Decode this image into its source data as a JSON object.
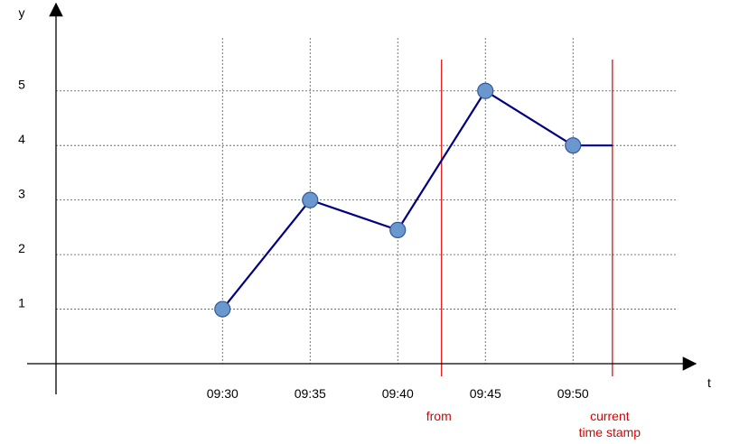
{
  "chart_data": {
    "type": "line",
    "xlabel": "t",
    "ylabel": "y",
    "x": [
      "09:30",
      "09:35",
      "09:40",
      "09:45",
      "09:50"
    ],
    "series": [
      {
        "values": [
          1.0,
          3.0,
          2.45,
          5.0,
          4.0
        ]
      }
    ],
    "y_ticks": [
      "1",
      "2",
      "3",
      "4",
      "5"
    ],
    "y_tick_values": [
      1,
      2,
      3,
      4,
      5
    ],
    "ylim": [
      0,
      6.6
    ],
    "x_tick_times_min": [
      0,
      5,
      10,
      15,
      20
    ],
    "xlim_min": [
      -9.5,
      27
    ],
    "grid": true,
    "grid_x_min": [
      0,
      5,
      10,
      15,
      20
    ],
    "grid_y": [
      1,
      2,
      3,
      4,
      5
    ],
    "flat_extension": {
      "from_min": 20,
      "to_min": 22.25,
      "value": 4.0
    },
    "markers": [
      {
        "label_lines": [
          "from"
        ],
        "at_min": 12.5,
        "color": "#dd0000"
      },
      {
        "label_lines": [
          "current",
          "time stamp"
        ],
        "at_min": 22.25,
        "color": "#dd0000"
      }
    ],
    "colors": {
      "line": "#000080",
      "point_fill": "#6b97cf",
      "point_stroke": "#34579a",
      "grid": "#555555",
      "axis": "#000000"
    }
  }
}
